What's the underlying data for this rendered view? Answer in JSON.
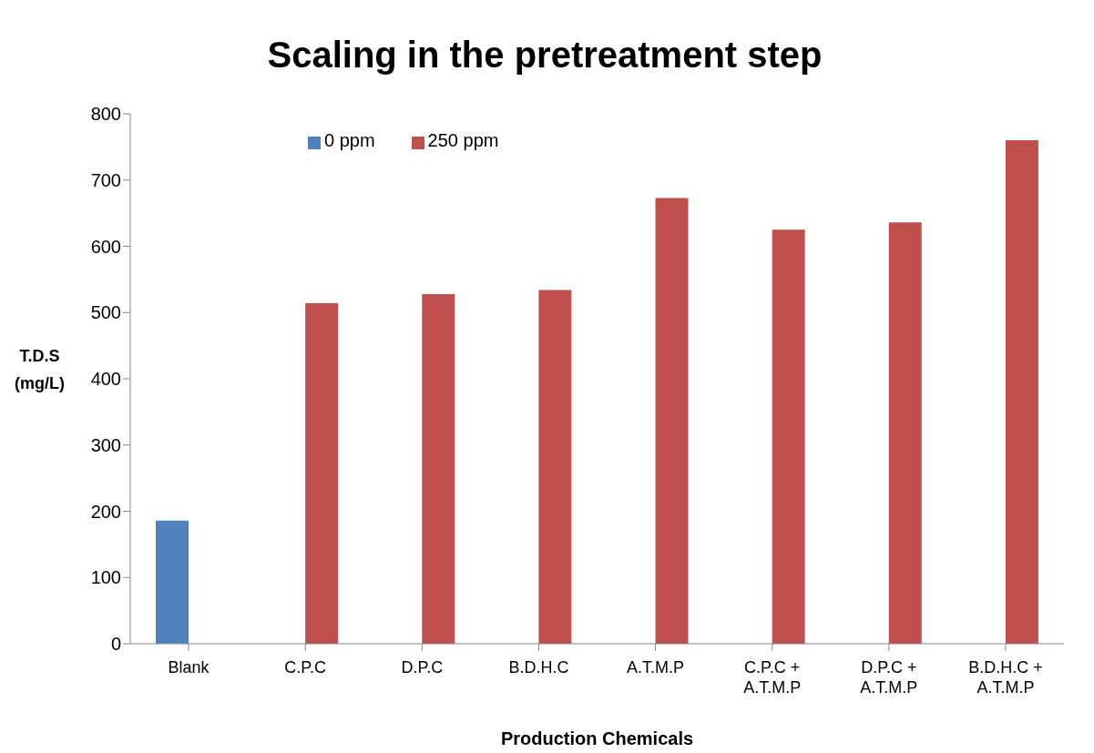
{
  "chart_data": {
    "type": "bar",
    "title": "Scaling in the pretreatment step",
    "xlabel": "Production Chemicals",
    "ylabel": "T.D.S (mg/L)",
    "categories": [
      "Blank",
      "C.P.C",
      "D.P.C",
      "B.D.H.C",
      "A.T.M.P",
      "C.P.C + A.T.M.P",
      "D.P.C + A.T.M.P",
      "B.D.H.C + A.T.M.P"
    ],
    "series": [
      {
        "name": "0 ppm",
        "color": "#4f81bd",
        "values": [
          186,
          null,
          null,
          null,
          null,
          null,
          null,
          null
        ]
      },
      {
        "name": "250 ppm",
        "color": "#c0504d",
        "values": [
          null,
          514,
          528,
          534,
          673,
          625,
          636,
          760
        ]
      }
    ],
    "ylim": [
      0,
      800
    ],
    "yticks": [
      0,
      100,
      200,
      300,
      400,
      500,
      600,
      700,
      800
    ],
    "grid": false,
    "legend": "top"
  }
}
